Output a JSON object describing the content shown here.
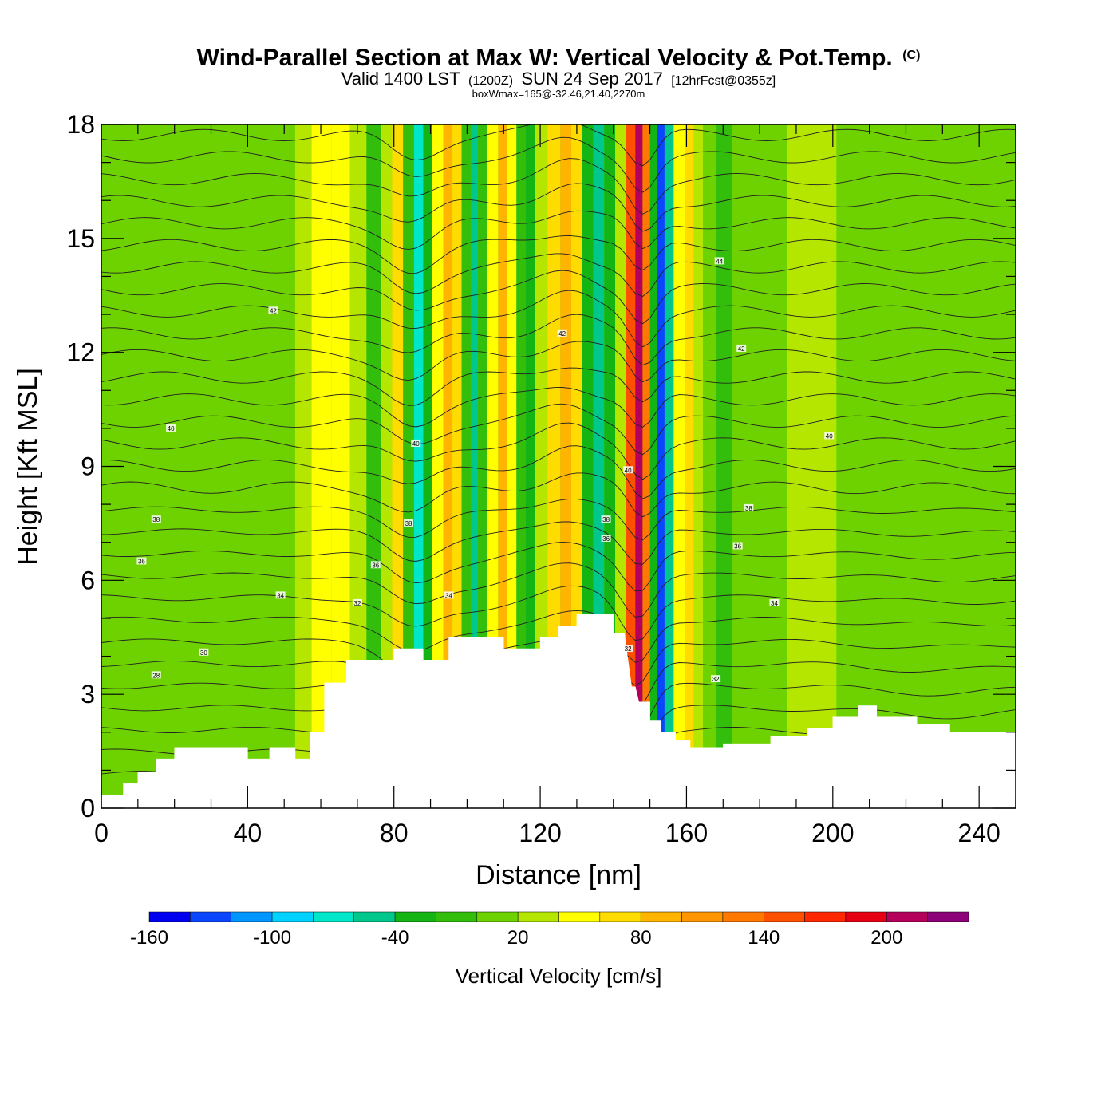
{
  "title": {
    "main": "Wind-Parallel Section at Max W: Vertical Velocity & Pot.Temp.",
    "copyright": "(C)",
    "valid_prefix": "Valid 1400 LST",
    "valid_utc": "(1200Z)",
    "valid_date": "SUN 24 Sep 2017",
    "forecast": "[12hrFcst@0355z]",
    "boxwmax": "boxWmax=165@-32.46,21.40,2270m"
  },
  "chart_data": {
    "type": "heatmap",
    "xlabel": "Distance [nm]",
    "ylabel": "Height [Kft MSL]",
    "xlim": [
      0,
      250
    ],
    "ylim": [
      0,
      18
    ],
    "x_ticks": [
      0,
      40,
      80,
      120,
      160,
      200,
      240
    ],
    "y_ticks": [
      0,
      3,
      6,
      9,
      12,
      15,
      18
    ],
    "x_tick_labels": [
      "0",
      "40",
      "80",
      "120",
      "160",
      "200",
      "240"
    ],
    "y_tick_labels": [
      "0",
      "3",
      "6",
      "9",
      "12",
      "15",
      "18"
    ],
    "grid": false,
    "colorbar": {
      "title": "Vertical Velocity [cm/s]",
      "placement": "bottom",
      "levels": [
        -160,
        -140,
        -120,
        -100,
        -80,
        -60,
        -40,
        -20,
        0,
        20,
        40,
        60,
        80,
        100,
        120,
        140,
        160,
        180,
        200,
        220,
        240
      ],
      "colors": [
        "#0000f0",
        "#0a46ff",
        "#0096ff",
        "#00d2ff",
        "#00e6c8",
        "#00c88c",
        "#14b414",
        "#32be0a",
        "#6ed200",
        "#b4e600",
        "#ffff00",
        "#ffdc00",
        "#ffb400",
        "#ff9600",
        "#ff7800",
        "#ff5000",
        "#ff2800",
        "#e60014",
        "#b4005a",
        "#8c0078"
      ],
      "tick_values": [
        -160,
        -100,
        -40,
        20,
        80,
        140,
        200
      ],
      "tick_labels": [
        "-160",
        "-100",
        "-40",
        "20",
        "80",
        "140",
        "200"
      ]
    },
    "velocity_columns": [
      {
        "x": 55,
        "v": 22
      },
      {
        "x": 60,
        "v": 42
      },
      {
        "x": 66,
        "v": 50
      },
      {
        "x": 70,
        "v": 26
      },
      {
        "x": 75,
        "v": -10
      },
      {
        "x": 78,
        "v": 30
      },
      {
        "x": 81,
        "v": 65
      },
      {
        "x": 84,
        "v": -5
      },
      {
        "x": 87,
        "v": -65
      },
      {
        "x": 89,
        "v": -30
      },
      {
        "x": 92,
        "v": 55
      },
      {
        "x": 95,
        "v": 90
      },
      {
        "x": 97,
        "v": 60
      },
      {
        "x": 100,
        "v": -15
      },
      {
        "x": 102,
        "v": -55
      },
      {
        "x": 104,
        "v": -20
      },
      {
        "x": 107,
        "v": 55
      },
      {
        "x": 110,
        "v": 82
      },
      {
        "x": 112,
        "v": 40
      },
      {
        "x": 115,
        "v": -20
      },
      {
        "x": 117,
        "v": -40
      },
      {
        "x": 120,
        "v": 20
      },
      {
        "x": 124,
        "v": 75
      },
      {
        "x": 127,
        "v": 95
      },
      {
        "x": 130,
        "v": 60
      },
      {
        "x": 133,
        "v": -30
      },
      {
        "x": 136,
        "v": -60
      },
      {
        "x": 139,
        "v": -40
      },
      {
        "x": 142,
        "v": 30
      },
      {
        "x": 145,
        "v": 150
      },
      {
        "x": 147,
        "v": 210
      },
      {
        "x": 149,
        "v": 120
      },
      {
        "x": 151,
        "v": -40
      },
      {
        "x": 153,
        "v": -130
      },
      {
        "x": 155,
        "v": -60
      },
      {
        "x": 158,
        "v": 45
      },
      {
        "x": 161,
        "v": 75
      },
      {
        "x": 163,
        "v": 38
      },
      {
        "x": 166,
        "v": 10
      },
      {
        "x": 170,
        "v": -15
      },
      {
        "x": 175,
        "v": 15
      },
      {
        "x": 180,
        "v": 10
      },
      {
        "x": 195,
        "v": 25
      },
      {
        "x": 207,
        "v": 18
      },
      {
        "x": 235,
        "v": 10
      }
    ],
    "pot_temp_labels": [
      {
        "text": "28",
        "x": 15,
        "y": 3.5
      },
      {
        "text": "30",
        "x": 28,
        "y": 4.1
      },
      {
        "text": "34",
        "x": 49,
        "y": 5.6
      },
      {
        "text": "36",
        "x": 11,
        "y": 6.5
      },
      {
        "text": "38",
        "x": 15,
        "y": 7.6
      },
      {
        "text": "40",
        "x": 19,
        "y": 10.0
      },
      {
        "text": "42",
        "x": 47,
        "y": 13.1
      },
      {
        "text": "32",
        "x": 70,
        "y": 5.4
      },
      {
        "text": "36",
        "x": 75,
        "y": 6.4
      },
      {
        "text": "38",
        "x": 84,
        "y": 7.5
      },
      {
        "text": "40",
        "x": 86,
        "y": 9.6
      },
      {
        "text": "34",
        "x": 95,
        "y": 5.6
      },
      {
        "text": "42",
        "x": 126,
        "y": 12.5
      },
      {
        "text": "36",
        "x": 138,
        "y": 7.1
      },
      {
        "text": "38",
        "x": 138,
        "y": 7.6
      },
      {
        "text": "40",
        "x": 144,
        "y": 8.9
      },
      {
        "text": "32",
        "x": 144,
        "y": 4.2
      },
      {
        "text": "44",
        "x": 169,
        "y": 14.4
      },
      {
        "text": "42",
        "x": 175,
        "y": 12.1
      },
      {
        "text": "40",
        "x": 199,
        "y": 9.8
      },
      {
        "text": "38",
        "x": 177,
        "y": 7.9
      },
      {
        "text": "36",
        "x": 174,
        "y": 6.9
      },
      {
        "text": "34",
        "x": 184,
        "y": 5.4
      },
      {
        "text": "32",
        "x": 168,
        "y": 3.4
      }
    ]
  }
}
